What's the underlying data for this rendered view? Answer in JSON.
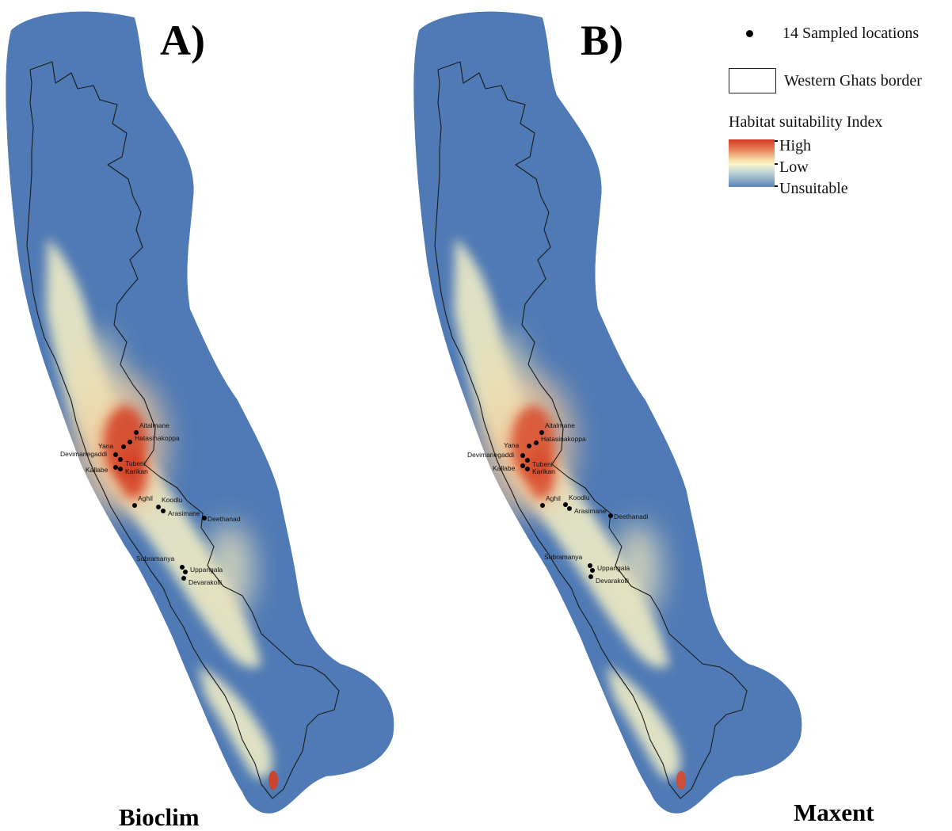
{
  "panels": [
    {
      "letter": "A)",
      "method": "Bioclim",
      "hotspot_color": "#d43e23",
      "labels": [
        "Aitalmane",
        "Hatasinakoppa",
        "Yana",
        "Devimanegaddi",
        "Tubeni",
        "Kallabe",
        "Karikan",
        "Aghil",
        "Koodlu",
        "Arasimane",
        "Deethanad",
        "Subramanya",
        "Uppangala",
        "Devarakolli"
      ]
    },
    {
      "letter": "B)",
      "method": "Maxent",
      "hotspot_color": "#d84a2a",
      "labels": [
        "Aitalmane",
        "Hatasinakoppa",
        "Yana",
        "Devimanegaddi",
        "Tubeni",
        "Kallabe",
        "Karikan",
        "Aghil",
        "Koodlu",
        "Arasimane",
        "Deethanadi",
        "Subramanya",
        "Uppangala",
        "Devarakolli"
      ]
    }
  ],
  "legend": {
    "points_label": "14 Sampled locations",
    "border_label": "Western Ghats border",
    "index_title": "Habitat suitability Index",
    "high": "High",
    "low": "Low",
    "unsuitable": "Unsuitable"
  },
  "colors": {
    "unsuitable": "#4f7ab5",
    "low": "#f8f3c6",
    "high": "#d43e23",
    "border": "#1a1a1a",
    "points": "#000000"
  }
}
